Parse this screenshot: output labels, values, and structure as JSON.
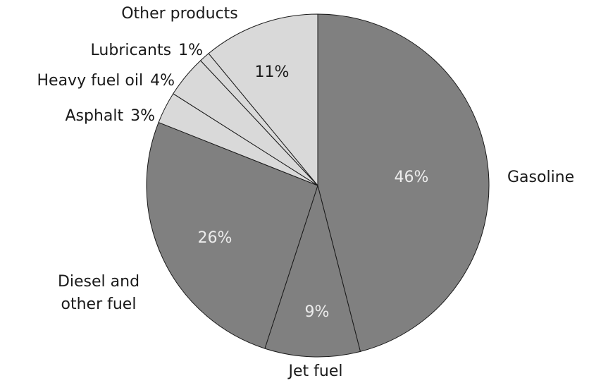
{
  "chart_data": {
    "type": "pie",
    "categories": [
      "Gasoline",
      "Jet fuel",
      "Diesel and other fuel",
      "Asphalt",
      "Heavy fuel oil",
      "Lubricants",
      "Other products"
    ],
    "values": [
      46,
      9,
      26,
      3,
      4,
      1,
      11
    ],
    "value_labels": [
      "46%",
      "9%",
      "26%",
      "3%",
      "4%",
      "1%",
      "11%"
    ],
    "colors": [
      "#808080",
      "#808080",
      "#808080",
      "#d9d9d9",
      "#d9d9d9",
      "#d9d9d9",
      "#d9d9d9"
    ]
  }
}
